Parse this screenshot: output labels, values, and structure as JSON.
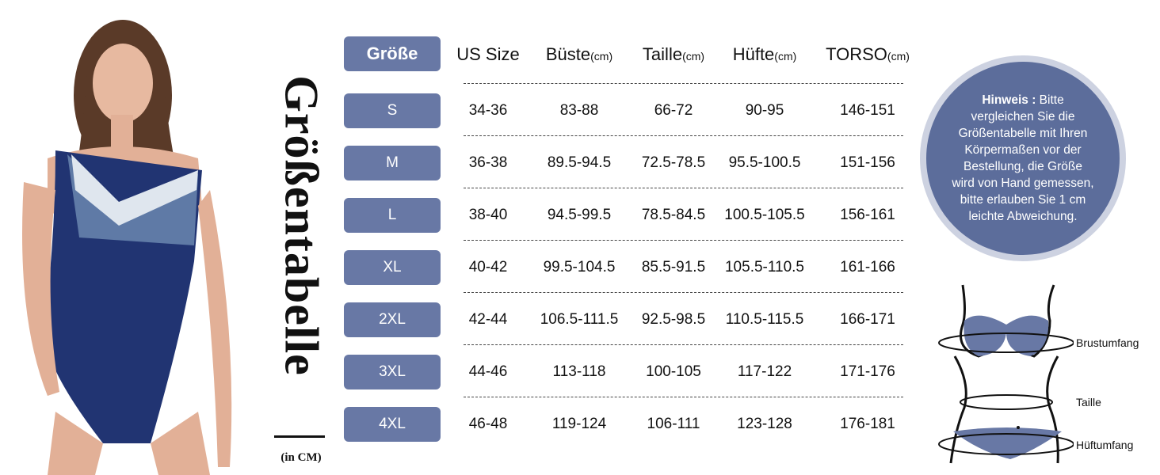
{
  "title": "Größentabelle",
  "subtitle": "(in CM)",
  "table": {
    "header": [
      {
        "text": "Größe"
      },
      {
        "text": "US Size"
      },
      {
        "text": "Büste",
        "unit": "(cm)"
      },
      {
        "text": "Taille",
        "unit": "(cm)"
      },
      {
        "text": "Hüfte",
        "unit": "(cm)"
      },
      {
        "text": "TORSO",
        "unit": "(cm)"
      }
    ],
    "rows": [
      [
        "S",
        "34-36",
        "83-88",
        "66-72",
        "90-95",
        "146-151"
      ],
      [
        "M",
        "36-38",
        "89.5-94.5",
        "72.5-78.5",
        "95.5-100.5",
        "151-156"
      ],
      [
        "L",
        "38-40",
        "94.5-99.5",
        "78.5-84.5",
        "100.5-105.5",
        "156-161"
      ],
      [
        "XL",
        "40-42",
        "99.5-104.5",
        "85.5-91.5",
        "105.5-110.5",
        "161-166"
      ],
      [
        "2XL",
        "42-44",
        "106.5-111.5",
        "92.5-98.5",
        "110.5-115.5",
        "166-171"
      ],
      [
        "3XL",
        "44-46",
        "113-118",
        "100-105",
        "117-122",
        "171-176"
      ],
      [
        "4XL",
        "46-48",
        "119-124",
        "106-111",
        "123-128",
        "176-181"
      ]
    ]
  },
  "note": {
    "label": "Hinweis :",
    "lines": [
      "Bitte",
      "vergleichen Sie die",
      "Größentabelle mit Ihren",
      "Körpermaßen vor der",
      "Bestellung, die Größe",
      "wird von Hand gemessen,",
      "bitte erlauben Sie 1 cm",
      "leichte Abweichung."
    ]
  },
  "diagram": {
    "labels": [
      "Brustumfang",
      "Taille",
      "Hüftumfang"
    ]
  }
}
